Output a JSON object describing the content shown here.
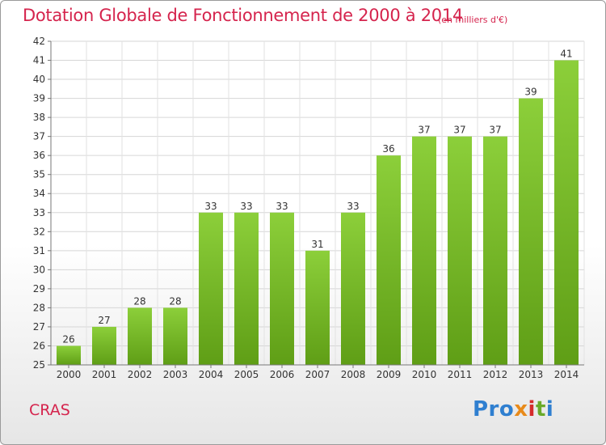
{
  "chart_data": {
    "type": "bar",
    "title": "Dotation Globale de Fonctionnement de 2000 à 2014",
    "subtitle": "(en milliers d'€)",
    "categories": [
      "2000",
      "2001",
      "2002",
      "2003",
      "2004",
      "2005",
      "2006",
      "2007",
      "2008",
      "2009",
      "2010",
      "2011",
      "2012",
      "2013",
      "2014"
    ],
    "values": [
      26,
      27,
      28,
      28,
      33,
      33,
      33,
      31,
      33,
      36,
      37,
      37,
      37,
      39,
      41
    ],
    "ylim": [
      25,
      42
    ],
    "yticks": [
      25,
      26,
      27,
      28,
      29,
      30,
      31,
      32,
      33,
      34,
      35,
      36,
      37,
      38,
      39,
      40,
      41,
      42
    ],
    "grid": true,
    "bar_color": "#7cbf2a"
  },
  "commune": "CRAS",
  "logo": {
    "p1": "Pro",
    "p2": "x",
    "p3": "i",
    "p4": "t",
    "p5": "i"
  }
}
